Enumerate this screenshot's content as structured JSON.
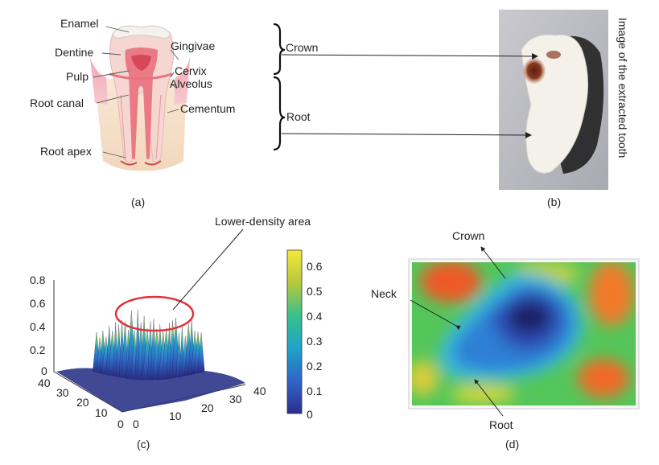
{
  "panel_a": {
    "caption": "(a)",
    "labels": {
      "enamel": "Enamel",
      "dentine": "Dentine",
      "pulp": "Pulp",
      "root_canal": "Root canal",
      "root_apex": "Root apex",
      "gingivae": "Gingivae",
      "cervix": "Cervix",
      "alveolus": "Alveolus",
      "cementum": "Cementum"
    }
  },
  "panel_b": {
    "caption": "(b)",
    "crown_label": "Crown",
    "root_label": "Root",
    "side_title": "Image of the extracted tooth"
  },
  "panel_c": {
    "caption": "(c)",
    "annotation": "Lower-density area",
    "z_ticks": [
      "0",
      "0.2",
      "0.4",
      "0.6",
      "0.8"
    ],
    "x_ticks": [
      "0",
      "10",
      "20",
      "30",
      "40"
    ],
    "y_ticks": [
      "0",
      "10",
      "20",
      "30",
      "40"
    ],
    "colorbar_ticks": [
      "0",
      "0.1",
      "0.2",
      "0.3",
      "0.4",
      "0.5",
      "0.6"
    ],
    "colors": {
      "highlight_ellipse": "#e0323a"
    }
  },
  "panel_d": {
    "caption": "(d)",
    "labels": {
      "crown": "Crown",
      "neck": "Neck",
      "root": "Root"
    }
  }
}
